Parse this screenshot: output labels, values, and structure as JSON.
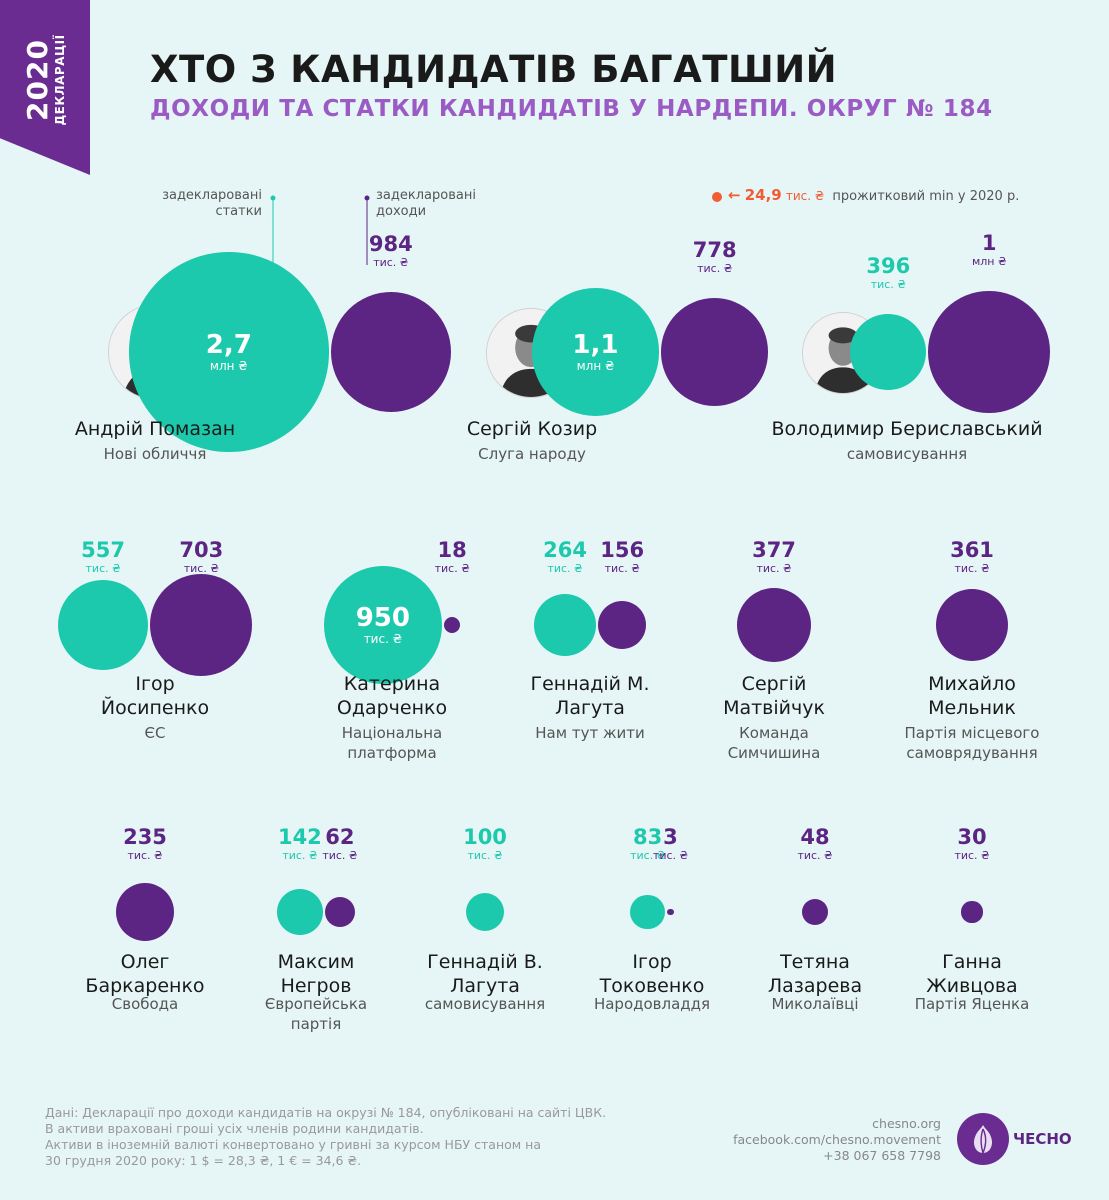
{
  "ribbon": {
    "year": "2020",
    "sub": "ДЕКЛАРАЦІЇ"
  },
  "title": "ХТО З КАНДИДАТІВ БАГАТШИЙ",
  "subtitle": "ДОХОДИ ТА СТАТКИ КАНДИДАТІВ У НАРДЕПИ. ОКРУГ № 184",
  "legend": {
    "assets": [
      "задекларовані",
      "статки"
    ],
    "income": [
      "задекларовані",
      "доходи"
    ],
    "lifemin_arrow": "←",
    "lifemin_value": "24,9",
    "lifemin_unit": "тис. ₴",
    "lifemin_text": "прожитковий min у 2020 р.",
    "lifemin_color": "#f35b32"
  },
  "colors": {
    "assets": "#1dc9ac",
    "income": "#5c2483",
    "accent": "#9a5bc4"
  },
  "chart_data": {
    "type": "scatter",
    "title": "ХТО З КАНДИДАТІВ БАГАТШИЙ",
    "series": [
      {
        "name": "задекларовані статки",
        "unit": "тис. ₴"
      },
      {
        "name": "задекларовані доходи",
        "unit": "тис. ₴"
      }
    ],
    "candidates": [
      {
        "name": [
          "Андрій Помазан"
        ],
        "party": [
          "Нові обличчя"
        ],
        "photo": true,
        "assets": 2700,
        "assets_label": "2,7",
        "assets_unit": "млн ₴",
        "income": 984,
        "income_label": "984",
        "income_unit": "тис. ₴"
      },
      {
        "name": [
          "Сергій Козир"
        ],
        "party": [
          "Слуга народу"
        ],
        "photo": true,
        "assets": 1100,
        "assets_label": "1,1",
        "assets_unit": "млн ₴",
        "income": 778,
        "income_label": "778",
        "income_unit": "тис. ₴"
      },
      {
        "name": [
          "Володимир Бериславський"
        ],
        "party": [
          "самовисування"
        ],
        "photo": true,
        "assets": 396,
        "assets_label": "396",
        "assets_unit": "тис. ₴",
        "income": 1000,
        "income_label": "1",
        "income_unit": "млн ₴"
      },
      {
        "name": [
          "Ігор",
          "Йосипенко"
        ],
        "party": [
          "ЄС"
        ],
        "assets": 557,
        "assets_label": "557",
        "assets_unit": "тис. ₴",
        "income": 703,
        "income_label": "703",
        "income_unit": "тис. ₴"
      },
      {
        "name": [
          "Катерина",
          "Одарченко"
        ],
        "party": [
          "Національна",
          "платформа"
        ],
        "assets": 950,
        "assets_label": "950",
        "assets_unit": "тис. ₴",
        "income": 18,
        "income_label": "18",
        "income_unit": "тис. ₴"
      },
      {
        "name": [
          "Геннадій М.",
          "Лагута"
        ],
        "party": [
          "Нам тут жити"
        ],
        "assets": 264,
        "assets_label": "264",
        "assets_unit": "тис. ₴",
        "income": 156,
        "income_label": "156",
        "income_unit": "тис. ₴"
      },
      {
        "name": [
          "Сергій",
          "Матвійчук"
        ],
        "party": [
          "Команда",
          "Симчишина"
        ],
        "assets": null,
        "income": 377,
        "income_label": "377",
        "income_unit": "тис. ₴"
      },
      {
        "name": [
          "Михайло",
          "Мельник"
        ],
        "party": [
          "Партія місцевого",
          "самоврядування"
        ],
        "assets": null,
        "income": 361,
        "income_label": "361",
        "income_unit": "тис. ₴"
      },
      {
        "name": [
          "Олег",
          "Баркаренко"
        ],
        "party": [
          "Свобода"
        ],
        "assets": null,
        "income": 235,
        "income_label": "235",
        "income_unit": "тис. ₴"
      },
      {
        "name": [
          "Максим",
          "Негров"
        ],
        "party": [
          "Європейська",
          "партія"
        ],
        "assets": 142,
        "assets_label": "142",
        "assets_unit": "тис. ₴",
        "income": 62,
        "income_label": "62",
        "income_unit": "тис. ₴"
      },
      {
        "name": [
          "Геннадій В.",
          "Лагута"
        ],
        "party": [
          "самовисування"
        ],
        "assets": 100,
        "assets_label": "100",
        "assets_unit": "тис. ₴",
        "income": null
      },
      {
        "name": [
          "Ігор",
          "Токовенко"
        ],
        "party": [
          "Народовладдя"
        ],
        "assets": 83,
        "assets_label": "83",
        "assets_unit": "тис. ₴",
        "income": 3,
        "income_label": "3",
        "income_unit": "тис. ₴"
      },
      {
        "name": [
          "Тетяна",
          "Лазарева"
        ],
        "party": [
          "Миколаївці"
        ],
        "assets": null,
        "income": 48,
        "income_label": "48",
        "income_unit": "тис. ₴"
      },
      {
        "name": [
          "Ганна",
          "Живцова"
        ],
        "party": [
          "Партія Яценка"
        ],
        "assets": null,
        "income": 30,
        "income_label": "30",
        "income_unit": "тис. ₴"
      }
    ]
  },
  "footer": {
    "note": [
      "Дані: Декларації про доходи кандидатів на окрузі № 184, опубліковані на сайті ЦВК.",
      "В активи враховані гроші усіх членів родини кандидатів.",
      "Активи в іноземній валюті конвертовано у гривні за курсом НБУ станом на",
      "30 грудня 2020 року: 1 $ = 28,3 ₴, 1 € = 34,6 ₴."
    ],
    "contacts": [
      "chesno.org",
      "facebook.com/chesno.movement",
      "+38 067 658 7798"
    ],
    "logo": "ЧЕСНО"
  }
}
